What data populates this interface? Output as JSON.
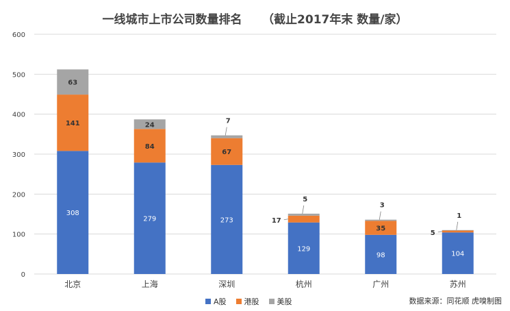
{
  "title": "一线城市上市公司数量排名     （截止2017年末 数量/家）",
  "source": "数据来源：同花顺  虎嗅制图",
  "colors": {
    "A股": "#4472C4",
    "港股": "#ED7D31",
    "美股": "#A5A5A5",
    "grid": "#D9D9D9",
    "axis_text": "#404040"
  },
  "chart_data": {
    "type": "bar",
    "stacked": true,
    "categories": [
      "北京",
      "上海",
      "深圳",
      "杭州",
      "广州",
      "苏州"
    ],
    "series": [
      {
        "name": "A股",
        "values": [
          308,
          279,
          273,
          129,
          98,
          104
        ]
      },
      {
        "name": "港股",
        "values": [
          141,
          84,
          67,
          17,
          35,
          5
        ]
      },
      {
        "name": "美股",
        "values": [
          63,
          24,
          7,
          5,
          3,
          1
        ]
      }
    ],
    "y_ticks": [
      "0",
      "100",
      "200",
      "300",
      "400",
      "500",
      "600"
    ],
    "ylim": [
      0,
      600
    ],
    "grid": true,
    "legend": "bottom"
  }
}
